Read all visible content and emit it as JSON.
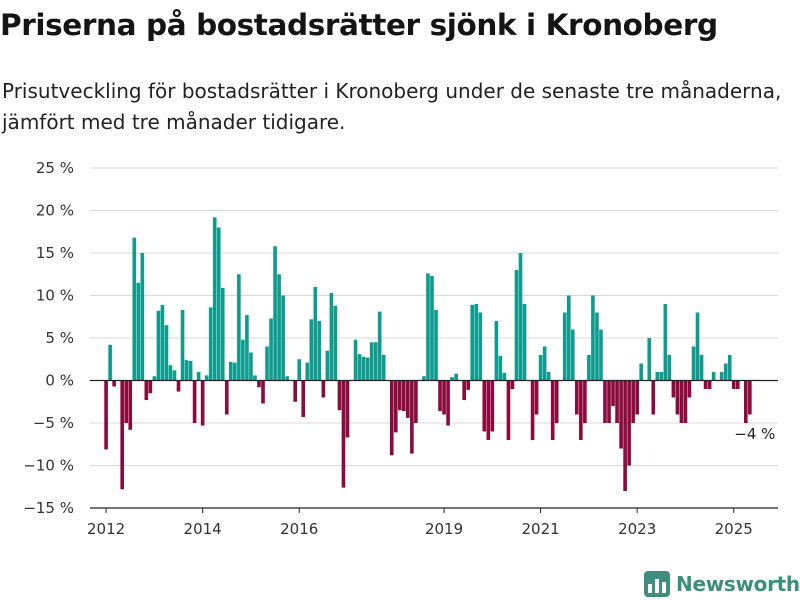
{
  "title": "Priserna på bostadsrätter sjönk i Kronoberg",
  "subtitle": "Prisutveckling för bostadsrätter i Kronoberg under de senaste tre månaderna, jämfört med tre månader tidigare.",
  "brand": {
    "name": "Newsworthy",
    "icon": "bar-chart-logo-icon"
  },
  "colors": {
    "positive": "#0f9c8e",
    "negative": "#8c0a3d",
    "baseline": "#222222",
    "grid": "#d8d8d8",
    "brand": "#3c8f7f"
  },
  "chart_data": {
    "type": "bar",
    "title": "Priserna på bostadsrätter sjönk i Kronoberg",
    "xlabel": "",
    "ylabel": "",
    "ylim": [
      -15,
      25
    ],
    "yticks": [
      25,
      20,
      15,
      10,
      5,
      0,
      -5,
      -10,
      -15
    ],
    "ytick_labels": [
      "25 %",
      "20 %",
      "15 %",
      "10 %",
      "5 %",
      "0 %",
      "−5 %",
      "−10 %",
      "−15 %"
    ],
    "xlim": [
      "2011-09",
      "2025-12"
    ],
    "xticks": [
      "2012",
      "2014",
      "2016",
      "2019",
      "2021",
      "2023",
      "2025"
    ],
    "grid": true,
    "annotation": {
      "date": "2025-05",
      "label": "−4 %"
    },
    "dates": [
      "2012-01",
      "2012-02",
      "2012-03",
      "2012-04",
      "2012-05",
      "2012-06",
      "2012-07",
      "2012-08",
      "2012-09",
      "2012-10",
      "2012-11",
      "2012-12",
      "2013-01",
      "2013-02",
      "2013-03",
      "2013-04",
      "2013-05",
      "2013-06",
      "2013-07",
      "2013-08",
      "2013-09",
      "2013-10",
      "2013-11",
      "2013-12",
      "2014-01",
      "2014-02",
      "2014-03",
      "2014-04",
      "2014-05",
      "2014-06",
      "2014-07",
      "2014-08",
      "2014-09",
      "2014-10",
      "2014-11",
      "2014-12",
      "2015-01",
      "2015-02",
      "2015-03",
      "2015-04",
      "2015-05",
      "2015-06",
      "2015-07",
      "2015-08",
      "2015-09",
      "2015-10",
      "2015-11",
      "2015-12",
      "2016-01",
      "2016-02",
      "2016-03",
      "2016-04",
      "2016-05",
      "2016-06",
      "2016-07",
      "2016-08",
      "2016-09",
      "2016-10",
      "2016-11",
      "2016-12",
      "2017-01",
      "2017-02",
      "2017-03",
      "2017-04",
      "2017-05",
      "2017-06",
      "2017-07",
      "2017-08",
      "2017-09",
      "2017-10",
      "2017-11",
      "2017-12",
      "2018-01",
      "2018-02",
      "2018-03",
      "2018-04",
      "2018-05",
      "2018-06",
      "2018-07",
      "2018-08",
      "2018-09",
      "2018-10",
      "2018-11",
      "2018-12",
      "2019-01",
      "2019-02",
      "2019-03",
      "2019-04",
      "2019-05",
      "2019-06",
      "2019-07",
      "2019-08",
      "2019-09",
      "2019-10",
      "2019-11",
      "2019-12",
      "2020-01",
      "2020-02",
      "2020-03",
      "2020-04",
      "2020-05",
      "2020-06",
      "2020-07",
      "2020-08",
      "2020-09",
      "2020-10",
      "2020-11",
      "2020-12",
      "2021-01",
      "2021-02",
      "2021-03",
      "2021-04",
      "2021-05",
      "2021-06",
      "2021-07",
      "2021-08",
      "2021-09",
      "2021-10",
      "2021-11",
      "2021-12",
      "2022-01",
      "2022-02",
      "2022-03",
      "2022-04",
      "2022-05",
      "2022-06",
      "2022-07",
      "2022-08",
      "2022-09",
      "2022-10",
      "2022-11",
      "2022-12",
      "2023-01",
      "2023-02",
      "2023-03",
      "2023-04",
      "2023-05",
      "2023-06",
      "2023-07",
      "2023-08",
      "2023-09",
      "2023-10",
      "2023-11",
      "2023-12",
      "2024-01",
      "2024-02",
      "2024-03",
      "2024-04",
      "2024-05",
      "2024-06",
      "2024-07",
      "2024-08",
      "2024-09",
      "2024-10",
      "2024-11",
      "2024-12",
      "2025-01",
      "2025-02",
      "2025-03",
      "2025-04",
      "2025-05"
    ],
    "values": [
      -8.1,
      4.2,
      -0.7,
      0,
      -12.8,
      -5.0,
      -5.8,
      16.8,
      11.5,
      15.0,
      -2.3,
      -1.5,
      0.5,
      8.2,
      8.9,
      6.5,
      1.8,
      1.2,
      -1.3,
      8.3,
      2.4,
      2.3,
      -5.0,
      1.0,
      -5.3,
      0.6,
      8.6,
      19.2,
      18.0,
      10.9,
      -4.0,
      2.2,
      2.1,
      12.5,
      4.8,
      7.7,
      3.3,
      0.6,
      -0.8,
      -2.7,
      4.0,
      7.3,
      15.8,
      12.5,
      10.0,
      0.5,
      0,
      -2.5,
      2.5,
      -4.3,
      2.1,
      7.2,
      11.0,
      7.0,
      -2.0,
      3.5,
      10.3,
      8.8,
      -3.5,
      -12.6,
      -6.7,
      0,
      4.8,
      3.1,
      2.8,
      2.7,
      4.5,
      4.5,
      8.1,
      3.0,
      0,
      -8.8,
      -6.1,
      -3.5,
      -3.6,
      -4.4,
      -8.6,
      -5.0,
      0,
      0.5,
      12.6,
      12.3,
      8.3,
      -3.6,
      -4.0,
      -5.3,
      0.4,
      0.8,
      0,
      -2.3,
      -1.1,
      8.9,
      9.0,
      8.0,
      -6.0,
      -7.0,
      -6.0,
      7.0,
      2.9,
      0.9,
      -7.0,
      -1.0,
      13.0,
      15.0,
      9.0,
      0,
      -7.0,
      -4.0,
      3.0,
      4.0,
      1.0,
      -7.0,
      -5.0,
      0,
      8.0,
      10.0,
      6.0,
      -4.0,
      -7.0,
      -5.0,
      3.0,
      10.0,
      8.0,
      6.0,
      -5.0,
      -5.0,
      -3.0,
      -5.0,
      -8.0,
      -13.0,
      -10.0,
      -5.0,
      -4.0,
      2.0,
      0,
      5.0,
      -4.0,
      1.0,
      1.0,
      9.0,
      3.0,
      -2.0,
      -4.0,
      -5.0,
      -5.0,
      -2.0,
      4.0,
      8.0,
      3.0,
      -1.0,
      -1.0,
      1.0,
      0,
      1.0,
      2.0,
      3.0,
      -1.0,
      -1.0,
      0,
      -5.0,
      -4.0
    ]
  }
}
